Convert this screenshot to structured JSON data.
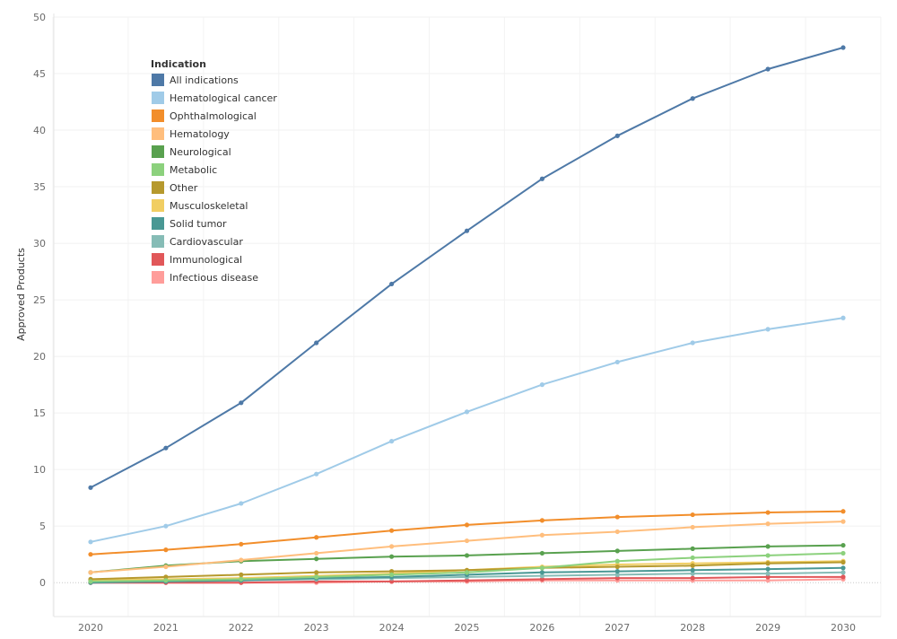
{
  "chart_data": {
    "type": "line",
    "title": "",
    "xlabel": "",
    "ylabel": "Approved Products",
    "x": [
      "2020",
      "2021",
      "2022",
      "2023",
      "2024",
      "2025",
      "2026",
      "2027",
      "2028",
      "2029",
      "2030"
    ],
    "ylim": [
      -3,
      50
    ],
    "yticks": [
      0,
      5,
      10,
      15,
      20,
      25,
      30,
      35,
      40,
      45,
      50
    ],
    "grid": true,
    "legend_title": "Indication",
    "legend_position": "top-left",
    "series": [
      {
        "name": "All indications",
        "color": "#4e79a7",
        "values": [
          8.4,
          11.9,
          15.9,
          21.2,
          26.4,
          31.1,
          35.7,
          39.5,
          42.8,
          45.4,
          47.3
        ]
      },
      {
        "name": "Hematological cancer",
        "color": "#a0cbe8",
        "values": [
          3.6,
          5.0,
          7.0,
          9.6,
          12.5,
          15.1,
          17.5,
          19.5,
          21.2,
          22.4,
          23.4
        ]
      },
      {
        "name": "Ophthalmological",
        "color": "#f28e2b",
        "values": [
          2.5,
          2.9,
          3.4,
          4.0,
          4.6,
          5.1,
          5.5,
          5.8,
          6.0,
          6.2,
          6.3
        ]
      },
      {
        "name": "Hematology",
        "color": "#ffbe7d",
        "values": [
          0.9,
          1.4,
          2.0,
          2.6,
          3.2,
          3.7,
          4.2,
          4.5,
          4.9,
          5.2,
          5.4
        ]
      },
      {
        "name": "Neurological",
        "color": "#59a14f",
        "values": [
          0.9,
          1.5,
          1.9,
          2.1,
          2.3,
          2.4,
          2.6,
          2.8,
          3.0,
          3.2,
          3.3
        ]
      },
      {
        "name": "Metabolic",
        "color": "#8cd17d",
        "values": [
          0.1,
          0.2,
          0.3,
          0.5,
          0.7,
          0.9,
          1.3,
          1.9,
          2.2,
          2.4,
          2.6
        ]
      },
      {
        "name": "Other",
        "color": "#b6992d",
        "values": [
          0.3,
          0.5,
          0.7,
          0.9,
          1.0,
          1.1,
          1.3,
          1.4,
          1.5,
          1.7,
          1.8
        ]
      },
      {
        "name": "Musculoskeletal",
        "color": "#f1ce63",
        "values": [
          0.2,
          0.3,
          0.4,
          0.6,
          0.8,
          1.1,
          1.4,
          1.6,
          1.7,
          1.8,
          1.9
        ]
      },
      {
        "name": "Solid tumor",
        "color": "#499894",
        "values": [
          0.0,
          0.1,
          0.2,
          0.4,
          0.5,
          0.7,
          0.9,
          1.0,
          1.1,
          1.2,
          1.3
        ]
      },
      {
        "name": "Cardiovascular",
        "color": "#86bcb6",
        "values": [
          0.1,
          0.1,
          0.2,
          0.3,
          0.4,
          0.5,
          0.6,
          0.7,
          0.8,
          0.8,
          0.9
        ]
      },
      {
        "name": "Immunological",
        "color": "#e15759",
        "values": [
          0.0,
          0.0,
          0.0,
          0.1,
          0.1,
          0.2,
          0.3,
          0.4,
          0.4,
          0.5,
          0.5
        ]
      },
      {
        "name": "Infectious disease",
        "color": "#ff9d9a",
        "values": [
          0.0,
          0.0,
          0.0,
          0.0,
          0.1,
          0.1,
          0.2,
          0.2,
          0.2,
          0.2,
          0.3
        ]
      }
    ]
  }
}
